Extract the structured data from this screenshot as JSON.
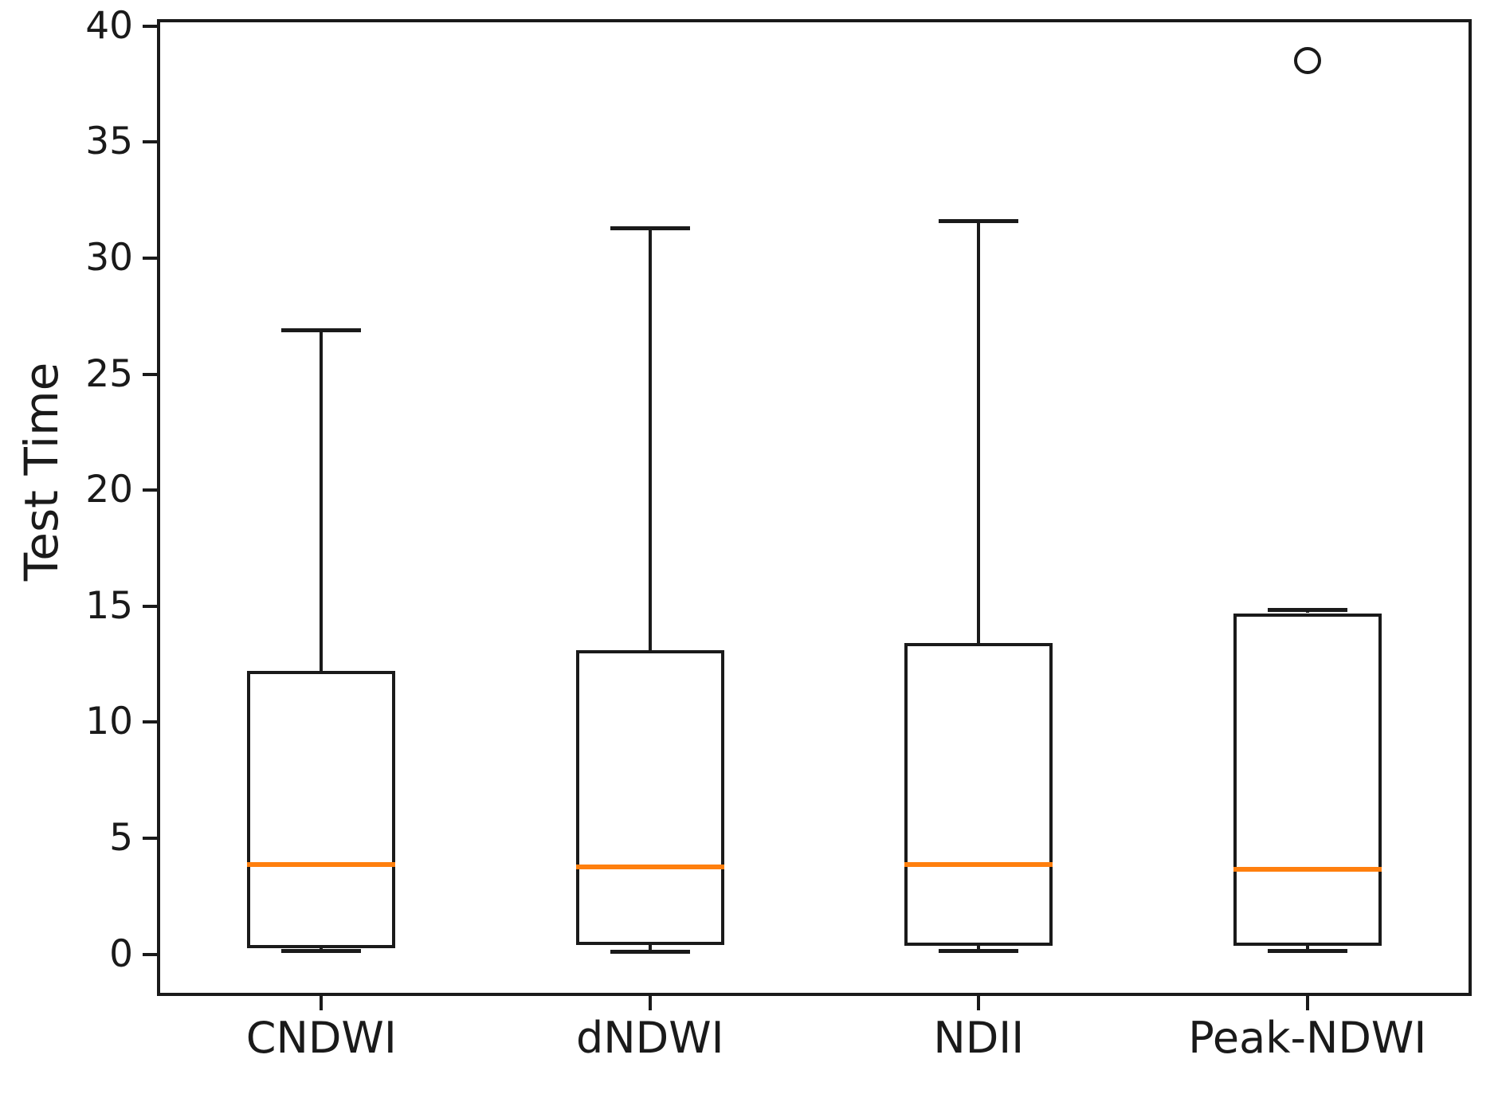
{
  "chart_data": {
    "type": "boxplot",
    "title": "",
    "ylabel": "Test Time",
    "xlabel": "",
    "categories": [
      "CNDWI",
      "dNDWI",
      "NDII",
      "Peak-NDWI"
    ],
    "yticks": [
      0,
      5,
      10,
      15,
      20,
      25,
      30,
      35,
      40
    ],
    "ylim": [
      -1.8,
      40.3
    ],
    "xlim": [
      0.5,
      4.5
    ],
    "grid": false,
    "legend": "none",
    "line_color": "#1a1a1a",
    "median_color": "#ff7f0e",
    "boxes": [
      {
        "label": "CNDWI",
        "position": 1,
        "whisker_low": 0.15,
        "q1": 0.25,
        "median": 3.85,
        "q3": 12.2,
        "whisker_high": 26.9,
        "outliers": []
      },
      {
        "label": "dNDWI",
        "position": 2,
        "whisker_low": 0.1,
        "q1": 0.4,
        "median": 3.75,
        "q3": 13.1,
        "whisker_high": 31.3,
        "outliers": []
      },
      {
        "label": "NDII",
        "position": 3,
        "whisker_low": 0.15,
        "q1": 0.35,
        "median": 3.85,
        "q3": 13.4,
        "whisker_high": 31.6,
        "outliers": []
      },
      {
        "label": "Peak-NDWI",
        "position": 4,
        "whisker_low": 0.15,
        "q1": 0.35,
        "median": 3.65,
        "q3": 14.7,
        "whisker_high": 14.85,
        "outliers": [
          38.5
        ]
      }
    ]
  }
}
